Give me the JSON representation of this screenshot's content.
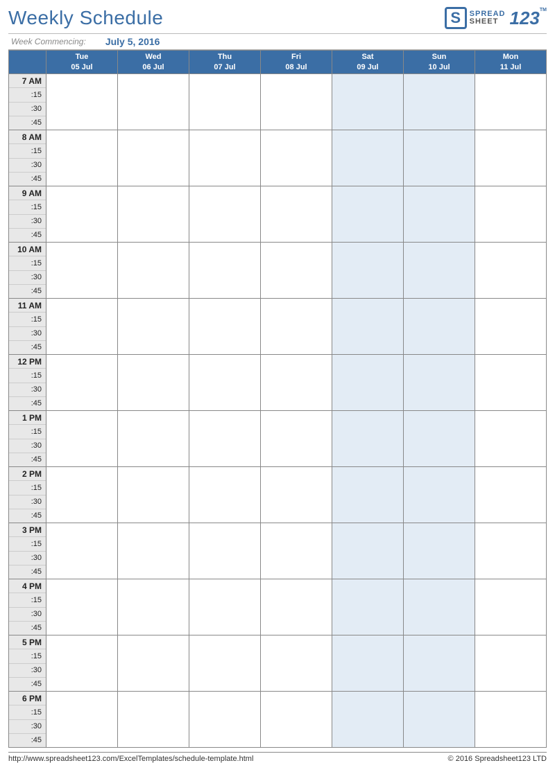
{
  "title": "Weekly Schedule",
  "logo": {
    "spread": "SPREAD",
    "sheet": "SHEET",
    "num": "123",
    "tm": "TM"
  },
  "week_label": "Week Commencing:",
  "week_date": "July 5, 2016",
  "colors": {
    "header_blue": "#3b6ea5",
    "time_col_bg": "#e8e8e8",
    "weekend_bg": "#e3ecf5",
    "border": "#888888"
  },
  "days": [
    {
      "name": "Tue",
      "date": "05 Jul",
      "weekend": false
    },
    {
      "name": "Wed",
      "date": "06 Jul",
      "weekend": false
    },
    {
      "name": "Thu",
      "date": "07 Jul",
      "weekend": false
    },
    {
      "name": "Fri",
      "date": "08 Jul",
      "weekend": false
    },
    {
      "name": "Sat",
      "date": "09 Jul",
      "weekend": true
    },
    {
      "name": "Sun",
      "date": "10 Jul",
      "weekend": true
    },
    {
      "name": "Mon",
      "date": "11 Jul",
      "weekend": false
    }
  ],
  "hours": [
    {
      "label": "7 AM"
    },
    {
      "label": "8 AM"
    },
    {
      "label": "9 AM"
    },
    {
      "label": "10 AM"
    },
    {
      "label": "11 AM"
    },
    {
      "label": "12 PM"
    },
    {
      "label": "1 PM"
    },
    {
      "label": "2 PM"
    },
    {
      "label": "3 PM"
    },
    {
      "label": "4 PM"
    },
    {
      "label": "5 PM"
    },
    {
      "label": "6 PM"
    }
  ],
  "subdivisions": [
    ":15",
    ":30",
    ":45"
  ],
  "footer": {
    "url": "http://www.spreadsheet123.com/ExcelTemplates/schedule-template.html",
    "copyright": "© 2016 Spreadsheet123 LTD"
  }
}
